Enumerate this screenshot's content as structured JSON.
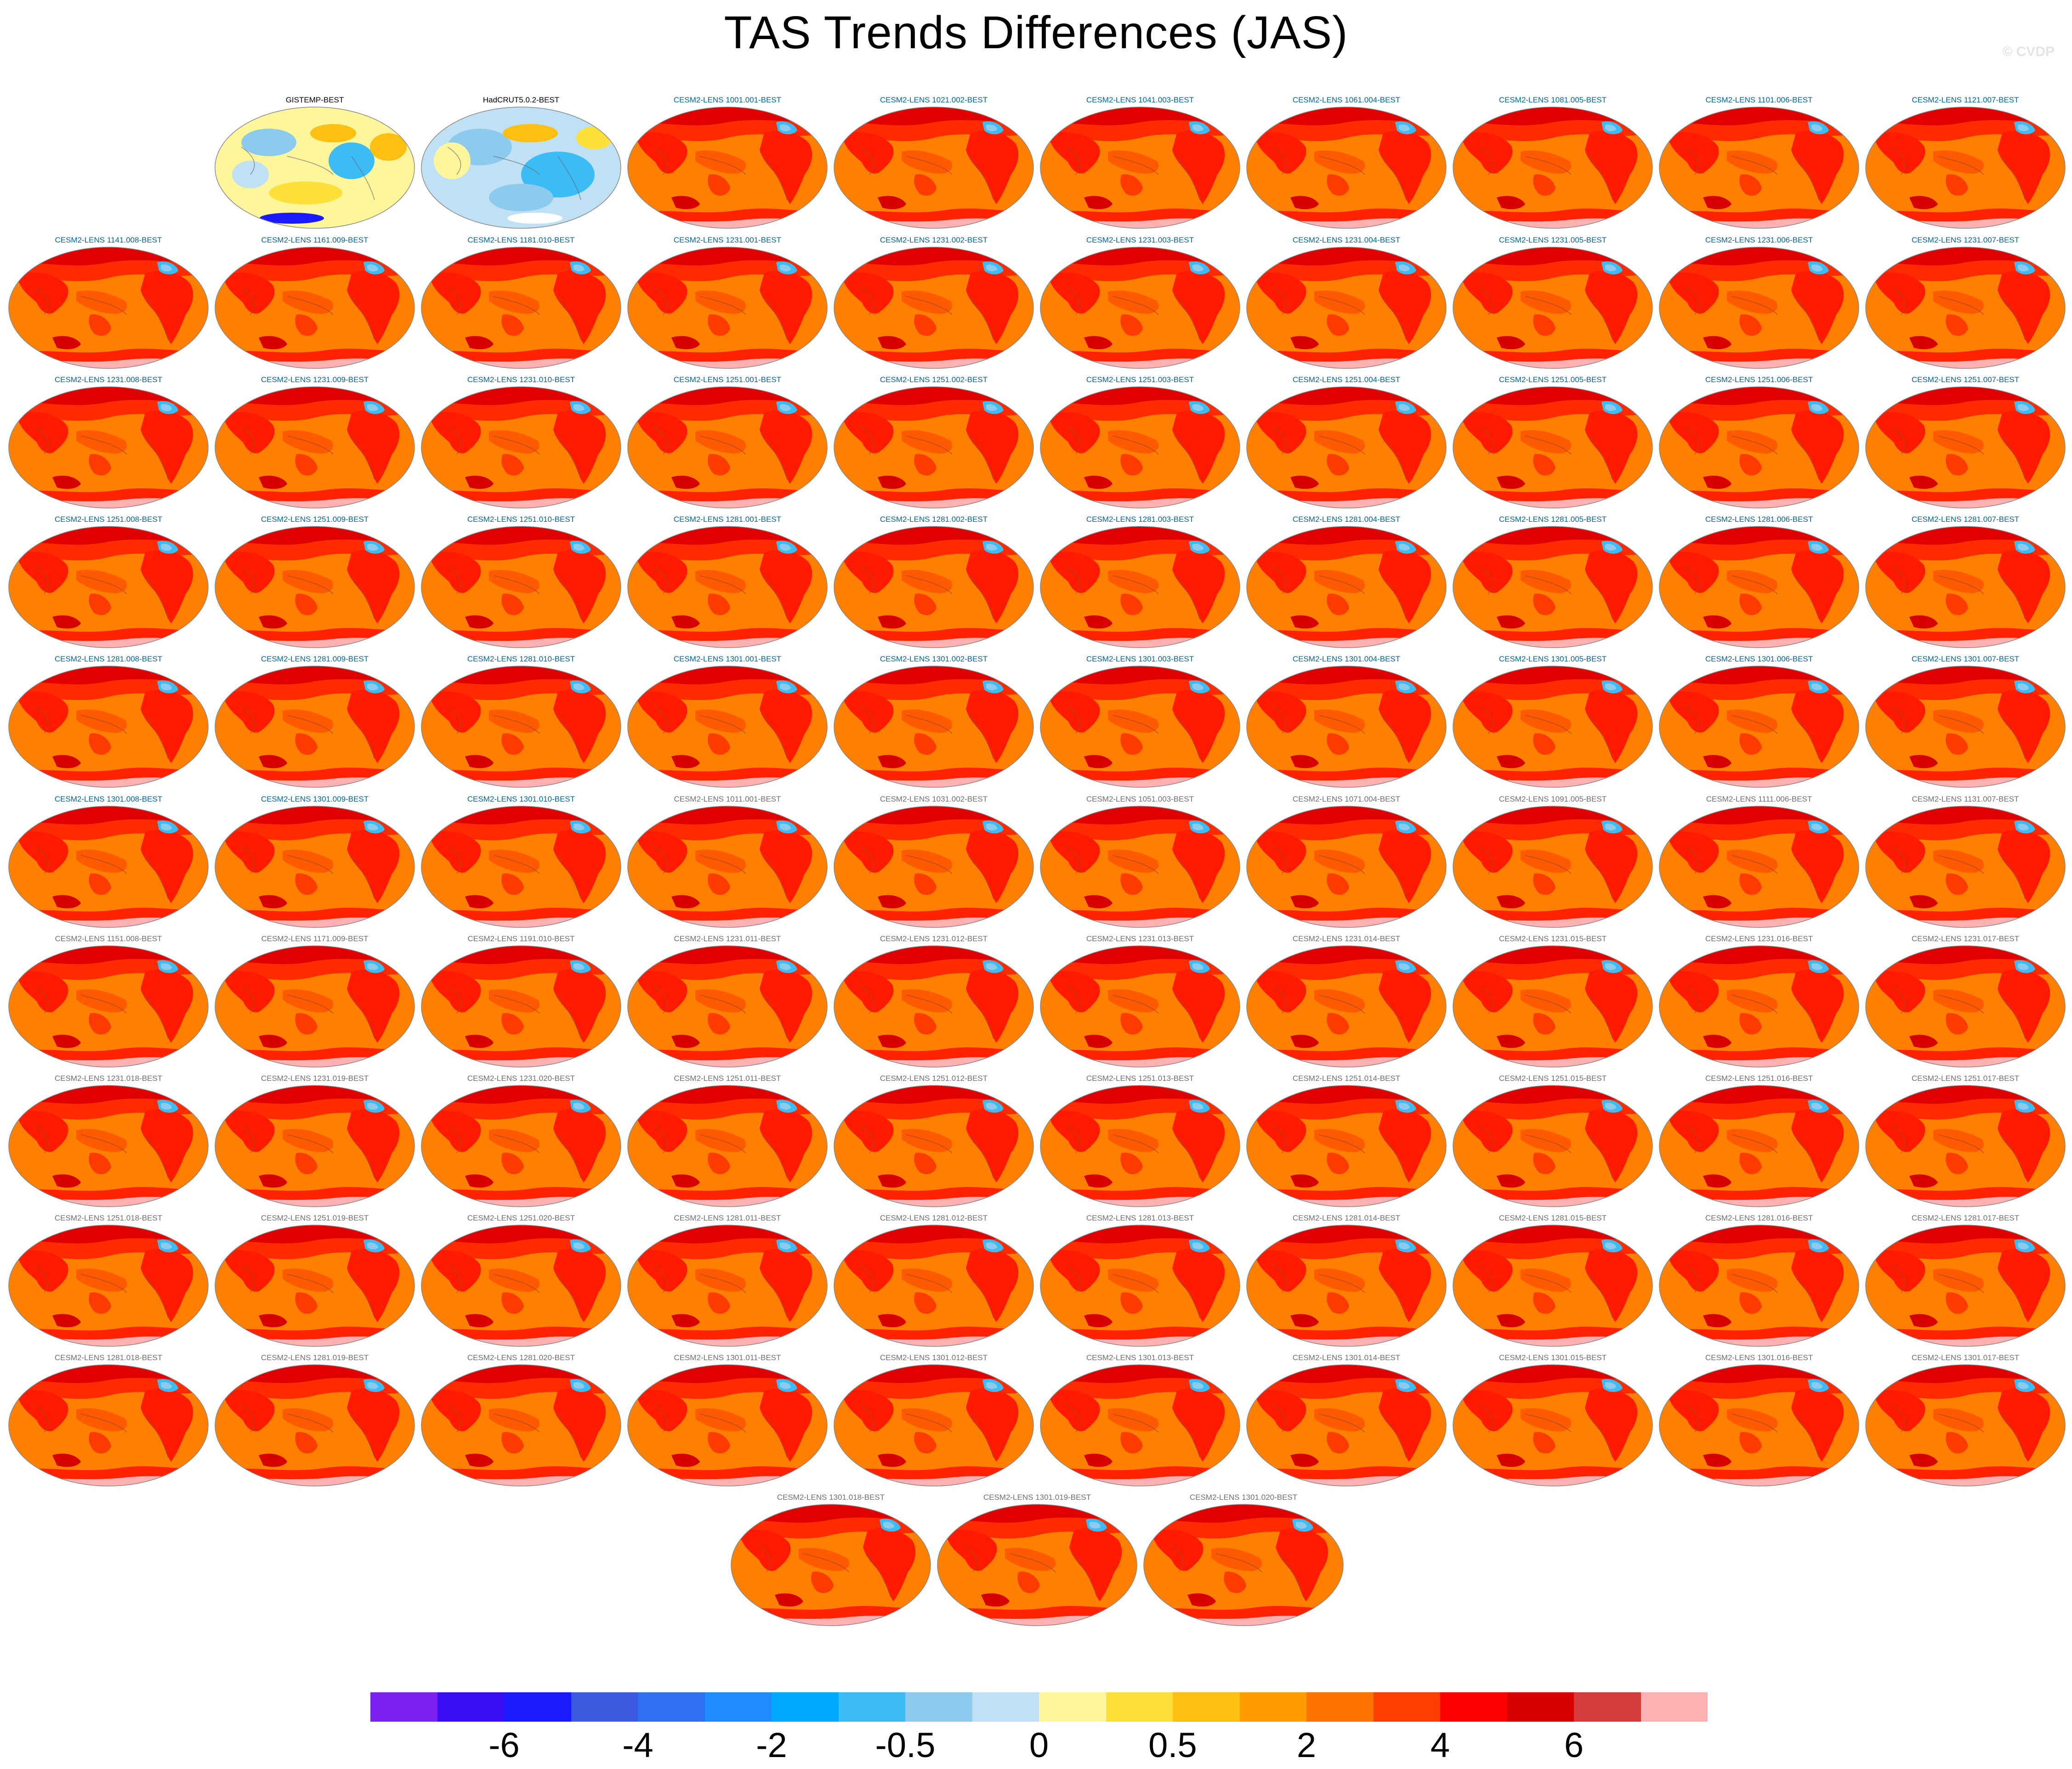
{
  "figure": {
    "title": "TAS Trends Differences (JAS)",
    "watermark": "© CVDP"
  },
  "chart_data": {
    "type": "heatmap",
    "title": "TAS Trends Differences (JAS)",
    "projection": "global map panels (one per ensemble member)",
    "panels": [
      {
        "label": "GISTEMP-BEST",
        "pattern": "obs1",
        "label_color": "#000000"
      },
      {
        "label": "HadCRUT5.0.2-BEST",
        "pattern": "obs2",
        "label_color": "#000000"
      },
      {
        "label": "CESM2-LENS 1001.001-BEST",
        "pattern": "warm",
        "label_color": "#006699"
      },
      {
        "label": "CESM2-LENS 1021.002-BEST",
        "pattern": "warm",
        "label_color": "#006699"
      },
      {
        "label": "CESM2-LENS 1041.003-BEST",
        "pattern": "warm",
        "label_color": "#006699"
      },
      {
        "label": "CESM2-LENS 1061.004-BEST",
        "pattern": "warm",
        "label_color": "#006699"
      },
      {
        "label": "CESM2-LENS 1081.005-BEST",
        "pattern": "warm",
        "label_color": "#006699"
      },
      {
        "label": "CESM2-LENS 1101.006-BEST",
        "pattern": "warm",
        "label_color": "#006699"
      },
      {
        "label": "CESM2-LENS 1121.007-BEST",
        "pattern": "warm",
        "label_color": "#006699"
      },
      {
        "label": "CESM2-LENS 1141.008-BEST",
        "pattern": "warm",
        "label_color": "#006699"
      },
      {
        "label": "CESM2-LENS 1161.009-BEST",
        "pattern": "warm",
        "label_color": "#006699"
      },
      {
        "label": "CESM2-LENS 1181.010-BEST",
        "pattern": "warm",
        "label_color": "#006699"
      },
      {
        "label": "CESM2-LENS 1231.001-BEST",
        "pattern": "warm",
        "label_color": "#006699"
      },
      {
        "label": "CESM2-LENS 1231.002-BEST",
        "pattern": "warm",
        "label_color": "#006699"
      },
      {
        "label": "CESM2-LENS 1231.003-BEST",
        "pattern": "warm",
        "label_color": "#006699"
      },
      {
        "label": "CESM2-LENS 1231.004-BEST",
        "pattern": "warm",
        "label_color": "#006699"
      },
      {
        "label": "CESM2-LENS 1231.005-BEST",
        "pattern": "warm",
        "label_color": "#006699"
      },
      {
        "label": "CESM2-LENS 1231.006-BEST",
        "pattern": "warm",
        "label_color": "#006699"
      },
      {
        "label": "CESM2-LENS 1231.007-BEST",
        "pattern": "warm",
        "label_color": "#006699"
      },
      {
        "label": "CESM2-LENS 1231.008-BEST",
        "pattern": "warm",
        "label_color": "#006699"
      },
      {
        "label": "CESM2-LENS 1231.009-BEST",
        "pattern": "warm",
        "label_color": "#006699"
      },
      {
        "label": "CESM2-LENS 1231.010-BEST",
        "pattern": "warm",
        "label_color": "#006699"
      },
      {
        "label": "CESM2-LENS 1251.001-BEST",
        "pattern": "warm",
        "label_color": "#006699"
      },
      {
        "label": "CESM2-LENS 1251.002-BEST",
        "pattern": "warm",
        "label_color": "#006699"
      },
      {
        "label": "CESM2-LENS 1251.003-BEST",
        "pattern": "warm",
        "label_color": "#006699"
      },
      {
        "label": "CESM2-LENS 1251.004-BEST",
        "pattern": "warm",
        "label_color": "#006699"
      },
      {
        "label": "CESM2-LENS 1251.005-BEST",
        "pattern": "warm",
        "label_color": "#006699"
      },
      {
        "label": "CESM2-LENS 1251.006-BEST",
        "pattern": "warm",
        "label_color": "#006699"
      },
      {
        "label": "CESM2-LENS 1251.007-BEST",
        "pattern": "warm",
        "label_color": "#006699"
      },
      {
        "label": "CESM2-LENS 1251.008-BEST",
        "pattern": "warm",
        "label_color": "#006699"
      },
      {
        "label": "CESM2-LENS 1251.009-BEST",
        "pattern": "warm",
        "label_color": "#006699"
      },
      {
        "label": "CESM2-LENS 1251.010-BEST",
        "pattern": "warm",
        "label_color": "#006699"
      },
      {
        "label": "CESM2-LENS 1281.001-BEST",
        "pattern": "warm",
        "label_color": "#006699"
      },
      {
        "label": "CESM2-LENS 1281.002-BEST",
        "pattern": "warm",
        "label_color": "#006699"
      },
      {
        "label": "CESM2-LENS 1281.003-BEST",
        "pattern": "warm",
        "label_color": "#006699"
      },
      {
        "label": "CESM2-LENS 1281.004-BEST",
        "pattern": "warm",
        "label_color": "#006699"
      },
      {
        "label": "CESM2-LENS 1281.005-BEST",
        "pattern": "warm",
        "label_color": "#006699"
      },
      {
        "label": "CESM2-LENS 1281.006-BEST",
        "pattern": "warm",
        "label_color": "#006699"
      },
      {
        "label": "CESM2-LENS 1281.007-BEST",
        "pattern": "warm",
        "label_color": "#006699"
      },
      {
        "label": "CESM2-LENS 1281.008-BEST",
        "pattern": "warm",
        "label_color": "#006699"
      },
      {
        "label": "CESM2-LENS 1281.009-BEST",
        "pattern": "warm",
        "label_color": "#006699"
      },
      {
        "label": "CESM2-LENS 1281.010-BEST",
        "pattern": "warm",
        "label_color": "#006699"
      },
      {
        "label": "CESM2-LENS 1301.001-BEST",
        "pattern": "warm",
        "label_color": "#006699"
      },
      {
        "label": "CESM2-LENS 1301.002-BEST",
        "pattern": "warm",
        "label_color": "#006699"
      },
      {
        "label": "CESM2-LENS 1301.003-BEST",
        "pattern": "warm",
        "label_color": "#006699"
      },
      {
        "label": "CESM2-LENS 1301.004-BEST",
        "pattern": "warm",
        "label_color": "#006699"
      },
      {
        "label": "CESM2-LENS 1301.005-BEST",
        "pattern": "warm",
        "label_color": "#006699"
      },
      {
        "label": "CESM2-LENS 1301.006-BEST",
        "pattern": "warm",
        "label_color": "#006699"
      },
      {
        "label": "CESM2-LENS 1301.007-BEST",
        "pattern": "warm",
        "label_color": "#006699"
      },
      {
        "label": "CESM2-LENS 1301.008-BEST",
        "pattern": "warm",
        "label_color": "#006699"
      },
      {
        "label": "CESM2-LENS 1301.009-BEST",
        "pattern": "warm",
        "label_color": "#006699"
      },
      {
        "label": "CESM2-LENS 1301.010-BEST",
        "pattern": "warm",
        "label_color": "#006699"
      },
      {
        "label": "CESM2-LENS 1011.001-BEST",
        "pattern": "warm",
        "label_color": "#6f6f6f"
      },
      {
        "label": "CESM2-LENS 1031.002-BEST",
        "pattern": "warm",
        "label_color": "#6f6f6f"
      },
      {
        "label": "CESM2-LENS 1051.003-BEST",
        "pattern": "warm",
        "label_color": "#6f6f6f"
      },
      {
        "label": "CESM2-LENS 1071.004-BEST",
        "pattern": "warm",
        "label_color": "#6f6f6f"
      },
      {
        "label": "CESM2-LENS 1091.005-BEST",
        "pattern": "warm",
        "label_color": "#6f6f6f"
      },
      {
        "label": "CESM2-LENS 1111.006-BEST",
        "pattern": "warm",
        "label_color": "#6f6f6f"
      },
      {
        "label": "CESM2-LENS 1131.007-BEST",
        "pattern": "warm",
        "label_color": "#6f6f6f"
      },
      {
        "label": "CESM2-LENS 1151.008-BEST",
        "pattern": "warm",
        "label_color": "#6f6f6f"
      },
      {
        "label": "CESM2-LENS 1171.009-BEST",
        "pattern": "warm",
        "label_color": "#6f6f6f"
      },
      {
        "label": "CESM2-LENS 1191.010-BEST",
        "pattern": "warm",
        "label_color": "#6f6f6f"
      },
      {
        "label": "CESM2-LENS 1231.011-BEST",
        "pattern": "warm",
        "label_color": "#6f6f6f"
      },
      {
        "label": "CESM2-LENS 1231.012-BEST",
        "pattern": "warm",
        "label_color": "#6f6f6f"
      },
      {
        "label": "CESM2-LENS 1231.013-BEST",
        "pattern": "warm",
        "label_color": "#6f6f6f"
      },
      {
        "label": "CESM2-LENS 1231.014-BEST",
        "pattern": "warm",
        "label_color": "#6f6f6f"
      },
      {
        "label": "CESM2-LENS 1231.015-BEST",
        "pattern": "warm",
        "label_color": "#6f6f6f"
      },
      {
        "label": "CESM2-LENS 1231.016-BEST",
        "pattern": "warm",
        "label_color": "#6f6f6f"
      },
      {
        "label": "CESM2-LENS 1231.017-BEST",
        "pattern": "warm",
        "label_color": "#6f6f6f"
      },
      {
        "label": "CESM2-LENS 1231.018-BEST",
        "pattern": "warm",
        "label_color": "#6f6f6f"
      },
      {
        "label": "CESM2-LENS 1231.019-BEST",
        "pattern": "warm",
        "label_color": "#6f6f6f"
      },
      {
        "label": "CESM2-LENS 1231.020-BEST",
        "pattern": "warm",
        "label_color": "#6f6f6f"
      },
      {
        "label": "CESM2-LENS 1251.011-BEST",
        "pattern": "warm",
        "label_color": "#6f6f6f"
      },
      {
        "label": "CESM2-LENS 1251.012-BEST",
        "pattern": "warm",
        "label_color": "#6f6f6f"
      },
      {
        "label": "CESM2-LENS 1251.013-BEST",
        "pattern": "warm",
        "label_color": "#6f6f6f"
      },
      {
        "label": "CESM2-LENS 1251.014-BEST",
        "pattern": "warm",
        "label_color": "#6f6f6f"
      },
      {
        "label": "CESM2-LENS 1251.015-BEST",
        "pattern": "warm",
        "label_color": "#6f6f6f"
      },
      {
        "label": "CESM2-LENS 1251.016-BEST",
        "pattern": "warm",
        "label_color": "#6f6f6f"
      },
      {
        "label": "CESM2-LENS 1251.017-BEST",
        "pattern": "warm",
        "label_color": "#6f6f6f"
      },
      {
        "label": "CESM2-LENS 1251.018-BEST",
        "pattern": "warm",
        "label_color": "#6f6f6f"
      },
      {
        "label": "CESM2-LENS 1251.019-BEST",
        "pattern": "warm",
        "label_color": "#6f6f6f"
      },
      {
        "label": "CESM2-LENS 1251.020-BEST",
        "pattern": "warm",
        "label_color": "#6f6f6f"
      },
      {
        "label": "CESM2-LENS 1281.011-BEST",
        "pattern": "warm",
        "label_color": "#6f6f6f"
      },
      {
        "label": "CESM2-LENS 1281.012-BEST",
        "pattern": "warm",
        "label_color": "#6f6f6f"
      },
      {
        "label": "CESM2-LENS 1281.013-BEST",
        "pattern": "warm",
        "label_color": "#6f6f6f"
      },
      {
        "label": "CESM2-LENS 1281.014-BEST",
        "pattern": "warm",
        "label_color": "#6f6f6f"
      },
      {
        "label": "CESM2-LENS 1281.015-BEST",
        "pattern": "warm",
        "label_color": "#6f6f6f"
      },
      {
        "label": "CESM2-LENS 1281.016-BEST",
        "pattern": "warm",
        "label_color": "#6f6f6f"
      },
      {
        "label": "CESM2-LENS 1281.017-BEST",
        "pattern": "warm",
        "label_color": "#6f6f6f"
      },
      {
        "label": "CESM2-LENS 1281.018-BEST",
        "pattern": "warm",
        "label_color": "#6f6f6f"
      },
      {
        "label": "CESM2-LENS 1281.019-BEST",
        "pattern": "warm",
        "label_color": "#6f6f6f"
      },
      {
        "label": "CESM2-LENS 1281.020-BEST",
        "pattern": "warm",
        "label_color": "#6f6f6f"
      },
      {
        "label": "CESM2-LENS 1301.011-BEST",
        "pattern": "warm",
        "label_color": "#6f6f6f"
      },
      {
        "label": "CESM2-LENS 1301.012-BEST",
        "pattern": "warm",
        "label_color": "#6f6f6f"
      },
      {
        "label": "CESM2-LENS 1301.013-BEST",
        "pattern": "warm",
        "label_color": "#6f6f6f"
      },
      {
        "label": "CESM2-LENS 1301.014-BEST",
        "pattern": "warm",
        "label_color": "#6f6f6f"
      },
      {
        "label": "CESM2-LENS 1301.015-BEST",
        "pattern": "warm",
        "label_color": "#6f6f6f"
      },
      {
        "label": "CESM2-LENS 1301.016-BEST",
        "pattern": "warm",
        "label_color": "#6f6f6f"
      },
      {
        "label": "CESM2-LENS 1301.017-BEST",
        "pattern": "warm",
        "label_color": "#6f6f6f"
      },
      {
        "label": "CESM2-LENS 1301.018-BEST",
        "pattern": "warm",
        "label_color": "#6f6f6f"
      },
      {
        "label": "CESM2-LENS 1301.019-BEST",
        "pattern": "warm",
        "label_color": "#6f6f6f"
      },
      {
        "label": "CESM2-LENS 1301.020-BEST",
        "pattern": "warm",
        "label_color": "#6f6f6f"
      }
    ],
    "colorbar": {
      "colors": [
        "#7b22f0",
        "#3a0ef5",
        "#1a1aff",
        "#3a5be0",
        "#2f6ff0",
        "#1e8cff",
        "#00aaff",
        "#3cbcf5",
        "#8ccbee",
        "#bfe0f5",
        "#fff59a",
        "#fde13a",
        "#fdbf12",
        "#ff9a00",
        "#ff7200",
        "#ff3d00",
        "#ff0000",
        "#d60000",
        "#d53b3b",
        "#ffb0b0"
      ],
      "tick_labels": [
        {
          "label": "-6",
          "boundary": 2
        },
        {
          "label": "-4",
          "boundary": 4
        },
        {
          "label": "-2",
          "boundary": 6
        },
        {
          "label": "-0.5",
          "boundary": 8
        },
        {
          "label": "0",
          "boundary": 10
        },
        {
          "label": "0.5",
          "boundary": 12
        },
        {
          "label": "2",
          "boundary": 14
        },
        {
          "label": "4",
          "boundary": 16
        },
        {
          "label": "6",
          "boundary": 18
        }
      ]
    }
  }
}
